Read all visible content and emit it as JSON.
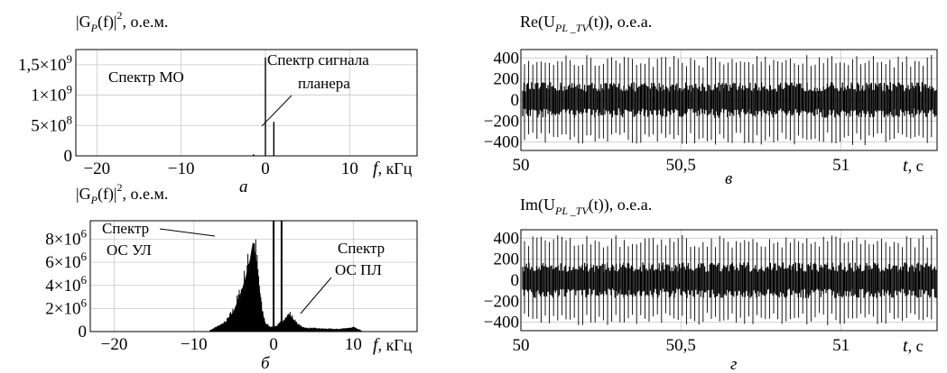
{
  "chart_data": [
    {
      "type": "line",
      "panel": "а",
      "ylabel_text": "|G",
      "ylabel_sub": "P",
      "ylabel_rest": "(f)|",
      "ylabel_sup": "2",
      "ylabel_unit": ", о.е.м.",
      "xlabel_var": "f",
      "xlabel_unit": ", кГц",
      "x_ticks": [
        "−20",
        "−10",
        "0",
        "10"
      ],
      "x_tick_values": [
        -20,
        -10,
        0,
        10
      ],
      "y_ticks": [
        {
          "mant": "0",
          "exp": "",
          "value": 0
        },
        {
          "mant": "5×10",
          "exp": "8",
          "value": 500000000
        },
        {
          "mant": "1×10",
          "exp": "9",
          "value": 1000000000
        },
        {
          "mant": "1,5×10",
          "exp": "9",
          "value": 1500000000
        }
      ],
      "xlim": [
        -22.5,
        18
      ],
      "ylim": [
        0,
        1750000000.0
      ],
      "x": [
        0,
        1.0
      ],
      "y": [
        1620000000.0,
        560000000.0
      ],
      "annotations": [
        {
          "text": "Спектр МО"
        },
        {
          "text": "Спектр сигнала"
        },
        {
          "text": "планера"
        }
      ]
    },
    {
      "type": "area",
      "panel": "б",
      "ylabel_text": "|G",
      "ylabel_sub": "P",
      "ylabel_rest": "(f)|",
      "ylabel_sup": "2",
      "ylabel_unit": ", о.е.м.",
      "xlabel_var": "f",
      "xlabel_unit": ", кГц",
      "x_ticks": [
        "−20",
        "−10",
        "0",
        "10"
      ],
      "x_tick_values": [
        -20,
        -10,
        0,
        10
      ],
      "y_ticks": [
        {
          "mant": "0",
          "exp": "",
          "value": 0
        },
        {
          "mant": "2×10",
          "exp": "6",
          "value": 2000000
        },
        {
          "mant": "4×10",
          "exp": "6",
          "value": 4000000
        },
        {
          "mant": "6×10",
          "exp": "6",
          "value": 6000000
        },
        {
          "mant": "8×10",
          "exp": "6",
          "value": 8000000
        }
      ],
      "xlim": [
        -23,
        18
      ],
      "ylim": [
        0,
        9600000.0
      ],
      "x": [
        -8,
        -6,
        -5,
        -4,
        -3.5,
        -3,
        -2.6,
        -2.2,
        -1.8,
        -1.5,
        -1,
        -0.5,
        0.5,
        1,
        2,
        3,
        4,
        6,
        8,
        10,
        11
      ],
      "y": [
        100000.0,
        800000.0,
        1800000.0,
        3600000.0,
        4800000.0,
        6200000.0,
        7800000.0,
        6500000.0,
        4000000.0,
        2000000.0,
        700000.0,
        400000.0,
        500000.0,
        800000.0,
        1500000.0,
        600000.0,
        300000.0,
        250000.0,
        200000.0,
        350000.0,
        100000.0
      ],
      "peaks_x": [
        0,
        1.0
      ],
      "annotations": [
        {
          "text": "Спектр"
        },
        {
          "text": "ОС УЛ"
        },
        {
          "text": "Спектр"
        },
        {
          "text": "ОС ПЛ"
        }
      ]
    },
    {
      "type": "line",
      "panel": "в",
      "ylabel_text": "Re(U",
      "ylabel_sub": "PL _TV",
      "ylabel_rest": "(t)), о.е.а.",
      "xlabel_var": "t",
      "xlabel_unit": ", с",
      "x_ticks": [
        "50",
        "50,5",
        "51"
      ],
      "x_tick_values": [
        50,
        50.5,
        51
      ],
      "y_ticks": [
        "400",
        "200",
        "0",
        "−200",
        "−400"
      ],
      "y_tick_values": [
        400,
        200,
        0,
        -200,
        -400
      ],
      "xlim": [
        50,
        51.3
      ],
      "ylim": [
        -480,
        480
      ],
      "signal_range": [
        -430,
        430
      ]
    },
    {
      "type": "line",
      "panel": "г",
      "ylabel_text": "Im(U",
      "ylabel_sub": "PL _TV",
      "ylabel_rest": "(t)), о.е.а.",
      "xlabel_var": "t",
      "xlabel_unit": ", с",
      "x_ticks": [
        "50",
        "50,5",
        "51"
      ],
      "x_tick_values": [
        50,
        50.5,
        51
      ],
      "y_ticks": [
        "400",
        "200",
        "0",
        "−200",
        "−400"
      ],
      "y_tick_values": [
        400,
        200,
        0,
        -200,
        -400
      ],
      "xlim": [
        50,
        51.3
      ],
      "ylim": [
        -480,
        480
      ],
      "signal_range": [
        -430,
        430
      ]
    }
  ],
  "colors": {
    "ink": "#000000",
    "grid": "#c8c8c8",
    "background": "#ffffff"
  }
}
